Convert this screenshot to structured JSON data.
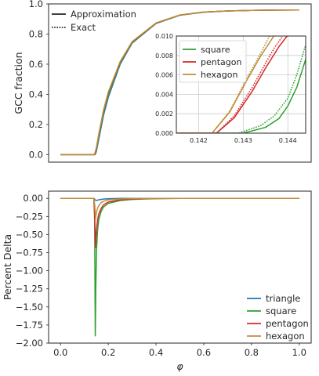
{
  "chart_data": [
    {
      "type": "line",
      "panel": "top",
      "ylabel": "GCC fraction",
      "xlim": [
        -0.05,
        1.05
      ],
      "ylim": [
        -0.05,
        1.0
      ],
      "x_ticks": [],
      "y_ticks": [
        0.0,
        0.2,
        0.4,
        0.6,
        0.8,
        1.0
      ],
      "y_tick_labels": [
        "0.0",
        "0.2",
        "0.4",
        "0.6",
        "0.8",
        "1.0"
      ],
      "grid": false,
      "legend": {
        "placement": "top-left",
        "entries": [
          {
            "label": "Approximation",
            "style": "solid"
          },
          {
            "label": "Exact",
            "style": "dotted"
          }
        ]
      },
      "series": [
        {
          "name": "triangle",
          "color": "#1f77b4",
          "x": [
            0.0,
            0.1,
            0.13,
            0.14,
            0.145,
            0.15,
            0.16,
            0.18,
            0.2,
            0.25,
            0.3,
            0.4,
            0.5,
            0.6,
            0.7,
            0.8,
            0.9,
            1.0
          ],
          "y": [
            0.0,
            0.0,
            0.0,
            0.0,
            0.0,
            0.02,
            0.1,
            0.26,
            0.38,
            0.6,
            0.74,
            0.87,
            0.925,
            0.945,
            0.953,
            0.957,
            0.959,
            0.96
          ]
        },
        {
          "name": "square",
          "color": "#2ca02c",
          "x": [
            0.0,
            0.1,
            0.13,
            0.14,
            0.144,
            0.15,
            0.16,
            0.18,
            0.2,
            0.25,
            0.3,
            0.4,
            0.5,
            0.6,
            0.7,
            0.8,
            0.9,
            1.0
          ],
          "y": [
            0.0,
            0.0,
            0.0,
            0.0,
            0.0,
            0.03,
            0.12,
            0.28,
            0.4,
            0.61,
            0.745,
            0.872,
            0.926,
            0.946,
            0.953,
            0.957,
            0.959,
            0.96
          ]
        },
        {
          "name": "pentagon",
          "color": "#d62728",
          "x": [
            0.0,
            0.1,
            0.13,
            0.14,
            0.143,
            0.15,
            0.16,
            0.18,
            0.2,
            0.25,
            0.3,
            0.4,
            0.5,
            0.6,
            0.7,
            0.8,
            0.9,
            1.0
          ],
          "y": [
            0.0,
            0.0,
            0.0,
            0.0,
            0.0,
            0.04,
            0.13,
            0.29,
            0.41,
            0.615,
            0.748,
            0.873,
            0.926,
            0.946,
            0.953,
            0.957,
            0.959,
            0.96
          ]
        },
        {
          "name": "hexagon",
          "color": "#bc8f3a",
          "x": [
            0.0,
            0.1,
            0.13,
            0.14,
            0.142,
            0.15,
            0.16,
            0.18,
            0.2,
            0.25,
            0.3,
            0.4,
            0.5,
            0.6,
            0.7,
            0.8,
            0.9,
            1.0
          ],
          "y": [
            0.0,
            0.0,
            0.0,
            0.0,
            0.0,
            0.045,
            0.135,
            0.295,
            0.415,
            0.618,
            0.75,
            0.874,
            0.927,
            0.946,
            0.953,
            0.957,
            0.959,
            0.96
          ]
        }
      ]
    },
    {
      "type": "line",
      "panel": "inset",
      "xlim": [
        0.1415,
        0.1444
      ],
      "ylim": [
        0.0,
        0.01
      ],
      "x_ticks": [
        0.142,
        0.143,
        0.144
      ],
      "x_tick_labels": [
        "0.142",
        "0.143",
        "0.144"
      ],
      "y_ticks": [
        0.0,
        0.002,
        0.004,
        0.006,
        0.008,
        0.01
      ],
      "y_tick_labels": [
        "0.000",
        "0.002",
        "0.004",
        "0.006",
        "0.008",
        "0.010"
      ],
      "grid": true,
      "legend": {
        "placement": "top-left",
        "entries": [
          {
            "label": "square",
            "color": "#2ca02c"
          },
          {
            "label": "pentagon",
            "color": "#d62728"
          },
          {
            "label": "hexagon",
            "color": "#bc8f3a"
          }
        ]
      },
      "series": [
        {
          "name": "square",
          "style": "solid",
          "color": "#2ca02c",
          "x": [
            0.1415,
            0.143,
            0.1435,
            0.1438,
            0.144,
            0.1442,
            0.1444
          ],
          "y": [
            0.0,
            0.0,
            0.0006,
            0.0015,
            0.0028,
            0.0047,
            0.0076
          ]
        },
        {
          "name": "square",
          "style": "dotted",
          "color": "#2ca02c",
          "x": [
            0.1415,
            0.1429,
            0.1434,
            0.1437,
            0.144,
            0.1442,
            0.1444
          ],
          "y": [
            0.0,
            0.0,
            0.0008,
            0.0018,
            0.0036,
            0.006,
            0.0091
          ]
        },
        {
          "name": "pentagon",
          "style": "solid",
          "color": "#d62728",
          "x": [
            0.1415,
            0.1424,
            0.1428,
            0.1432,
            0.1435,
            0.1438,
            0.144
          ],
          "y": [
            0.0,
            0.0,
            0.0016,
            0.0043,
            0.0067,
            0.0089,
            0.0101
          ]
        },
        {
          "name": "pentagon",
          "style": "dotted",
          "color": "#d62728",
          "x": [
            0.1415,
            0.1424,
            0.1428,
            0.1432,
            0.1435,
            0.1437,
            0.1439
          ],
          "y": [
            0.0,
            0.0,
            0.0018,
            0.0047,
            0.0072,
            0.0088,
            0.0101
          ]
        },
        {
          "name": "hexagon",
          "style": "solid",
          "color": "#bc8f3a",
          "x": [
            0.1415,
            0.1423,
            0.1427,
            0.1431,
            0.1434,
            0.1437
          ],
          "y": [
            0.0,
            0.0,
            0.0022,
            0.0056,
            0.008,
            0.0101
          ]
        },
        {
          "name": "hexagon",
          "style": "dotted",
          "color": "#bc8f3a",
          "x": [
            0.1415,
            0.1423,
            0.1427,
            0.1431,
            0.1434,
            0.1436
          ],
          "y": [
            0.0,
            0.0,
            0.0023,
            0.0058,
            0.0083,
            0.0101
          ]
        }
      ]
    },
    {
      "type": "line",
      "panel": "bottom",
      "xlabel": "φ",
      "ylabel": "Percent Delta",
      "xlim": [
        -0.05,
        1.05
      ],
      "ylim": [
        -2.0,
        0.1
      ],
      "x_ticks": [
        0.0,
        0.2,
        0.4,
        0.6,
        0.8,
        1.0
      ],
      "x_tick_labels": [
        "0.0",
        "0.2",
        "0.4",
        "0.6",
        "0.8",
        "1.0"
      ],
      "y_ticks": [
        0.0,
        -0.25,
        -0.5,
        -0.75,
        -1.0,
        -1.25,
        -1.5,
        -1.75,
        -2.0
      ],
      "y_tick_labels": [
        "0.00",
        "−0.25",
        "−0.50",
        "−0.75",
        "−1.00",
        "−1.25",
        "−1.50",
        "−1.75",
        "−2.00"
      ],
      "grid": false,
      "legend": {
        "placement": "bottom-right",
        "entries": [
          {
            "label": "triangle",
            "color": "#1f77b4"
          },
          {
            "label": "square",
            "color": "#2ca02c"
          },
          {
            "label": "pentagon",
            "color": "#d62728"
          },
          {
            "label": "hexagon",
            "color": "#bc8f3a"
          }
        ]
      },
      "series": [
        {
          "name": "triangle",
          "color": "#1f77b4",
          "x": [
            0.0,
            0.14,
            0.145,
            0.15,
            0.16,
            0.18,
            0.2,
            0.25,
            0.3,
            1.0
          ],
          "y": [
            0.0,
            0.0,
            -0.02,
            -0.03,
            -0.02,
            -0.01,
            -0.005,
            0.0,
            0.0,
            0.0
          ]
        },
        {
          "name": "square",
          "color": "#2ca02c",
          "x": [
            0.0,
            0.14,
            0.143,
            0.1455,
            0.148,
            0.151,
            0.155,
            0.16,
            0.17,
            0.18,
            0.2,
            0.25,
            0.3,
            0.35,
            0.4,
            0.5,
            1.0
          ],
          "y": [
            0.0,
            0.0,
            -0.3,
            -1.9,
            -1.2,
            -0.7,
            -0.45,
            -0.3,
            -0.18,
            -0.12,
            -0.07,
            -0.03,
            -0.015,
            -0.008,
            -0.004,
            0.0,
            0.0
          ]
        },
        {
          "name": "pentagon",
          "color": "#d62728",
          "x": [
            0.0,
            0.14,
            0.143,
            0.1465,
            0.15,
            0.155,
            0.16,
            0.17,
            0.18,
            0.2,
            0.25,
            0.3,
            0.35,
            0.4,
            0.5,
            1.0
          ],
          "y": [
            0.0,
            0.0,
            -0.25,
            -0.68,
            -0.45,
            -0.3,
            -0.22,
            -0.14,
            -0.09,
            -0.05,
            -0.02,
            -0.01,
            -0.005,
            -0.002,
            0.0,
            0.0
          ]
        },
        {
          "name": "hexagon",
          "color": "#bc8f3a",
          "x": [
            0.0,
            0.14,
            0.1435,
            0.1465,
            0.15,
            0.155,
            0.16,
            0.17,
            0.18,
            0.2,
            0.25,
            0.3,
            0.4,
            1.0
          ],
          "y": [
            0.0,
            0.0,
            -0.1,
            -0.28,
            -0.2,
            -0.14,
            -0.1,
            -0.06,
            -0.04,
            -0.02,
            -0.008,
            -0.003,
            0.0,
            0.0
          ]
        }
      ]
    }
  ]
}
